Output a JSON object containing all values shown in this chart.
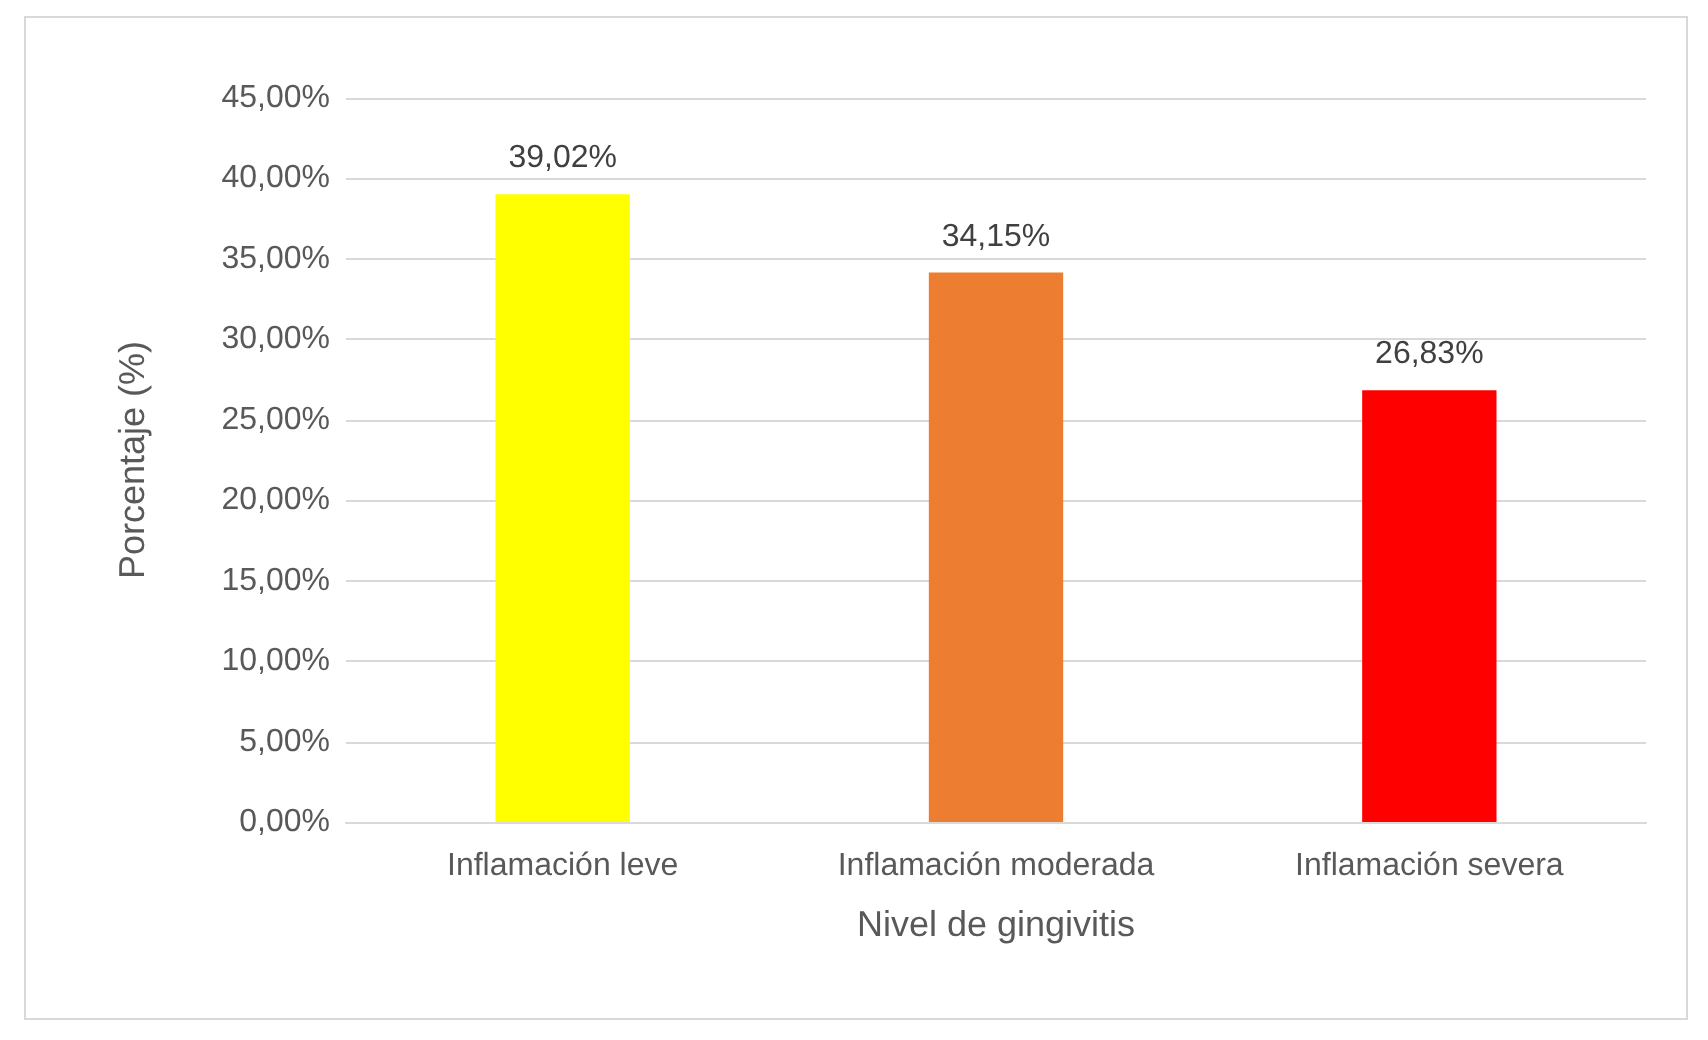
{
  "chart_data": {
    "type": "bar",
    "xlabel": "Nivel de gingivitis",
    "ylabel": "Porcentaje (%)",
    "categories": [
      "Inflamación leve",
      "Inflamación moderada",
      "Inflamación severa"
    ],
    "values": [
      39.02,
      34.15,
      26.83
    ],
    "colors": [
      "#ffff00",
      "#ed7d31",
      "#ff0000"
    ],
    "value_labels": [
      "39,02%",
      "34,15%",
      "26,83%"
    ],
    "ylim": [
      0,
      45
    ],
    "yticks": [
      {
        "value": 0,
        "label": "0,00%"
      },
      {
        "value": 5,
        "label": "5,00%"
      },
      {
        "value": 10,
        "label": "10,00%"
      },
      {
        "value": 15,
        "label": "15,00%"
      },
      {
        "value": 20,
        "label": "20,00%"
      },
      {
        "value": 25,
        "label": "25,00%"
      },
      {
        "value": 30,
        "label": "30,00%"
      },
      {
        "value": 35,
        "label": "35,00%"
      },
      {
        "value": 40,
        "label": "40,00%"
      },
      {
        "value": 45,
        "label": "45,00%"
      }
    ],
    "grid": "y"
  }
}
